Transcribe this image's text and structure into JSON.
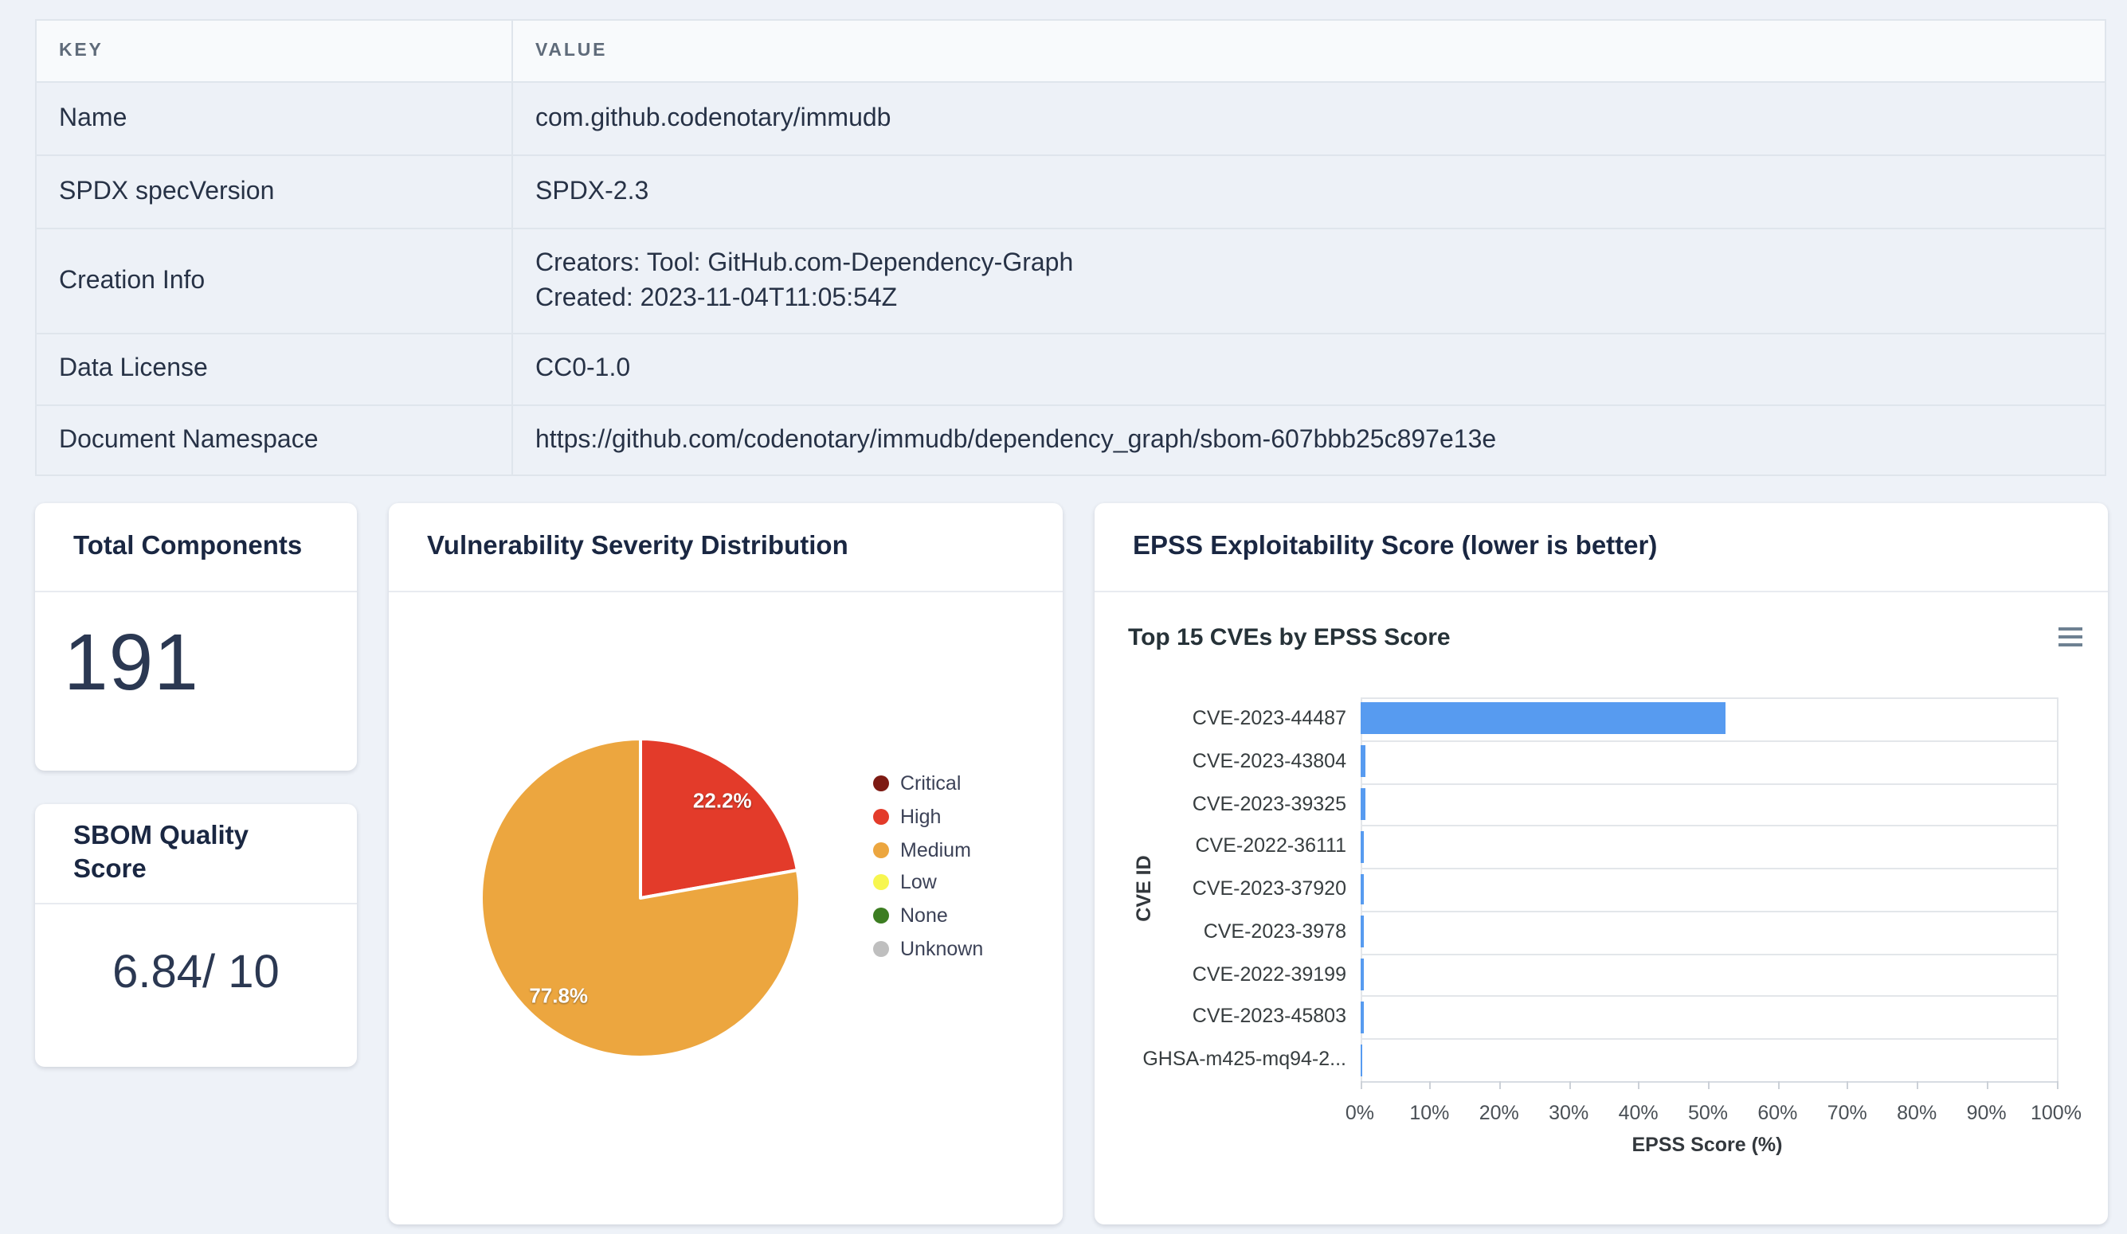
{
  "metadata_table": {
    "headers": [
      "KEY",
      "VALUE"
    ],
    "rows": [
      {
        "key": "Name",
        "value": "com.github.codenotary/immudb"
      },
      {
        "key": "SPDX specVersion",
        "value": "SPDX-2.3"
      },
      {
        "key": "Creation Info",
        "value_lines": [
          "Creators: Tool: GitHub.com-Dependency-Graph",
          "Created: 2023-11-04T11:05:54Z"
        ]
      },
      {
        "key": "Data License",
        "value": "CC0-1.0"
      },
      {
        "key": "Document Namespace",
        "value": "https://github.com/codenotary/immudb/dependency_graph/sbom-607bbb25c897e13e"
      }
    ]
  },
  "cards": {
    "total_components": {
      "title": "Total Components",
      "value": "191"
    },
    "sbom_quality": {
      "title": "SBOM Quality Score",
      "value": "6.84/ 10"
    },
    "severity_distribution": {
      "title": "Vulnerability Severity Distribution"
    },
    "epss": {
      "title": "EPSS Exploitability Score (lower is better)"
    }
  },
  "chart_data": [
    {
      "type": "pie",
      "title": "Vulnerability Severity Distribution",
      "slices": [
        {
          "label": "High",
          "value": 22.2,
          "color": "#e33b2a",
          "data_label": "22.2%"
        },
        {
          "label": "Medium",
          "value": 77.8,
          "color": "#eca63f",
          "data_label": "77.8%"
        }
      ],
      "legend_position": "right",
      "legend": [
        {
          "label": "Critical",
          "color": "#7d1a13"
        },
        {
          "label": "High",
          "color": "#e33b2a"
        },
        {
          "label": "Medium",
          "color": "#eca63f"
        },
        {
          "label": "Low",
          "color": "#f7f64f"
        },
        {
          "label": "None",
          "color": "#3c7d21"
        },
        {
          "label": "Unknown",
          "color": "#bfbfbf"
        }
      ]
    },
    {
      "type": "bar",
      "orientation": "horizontal",
      "title": "Top 15 CVEs by EPSS Score",
      "categories": [
        "CVE-2023-44487",
        "CVE-2023-43804",
        "CVE-2023-39325",
        "CVE-2022-36111",
        "CVE-2023-37920",
        "CVE-2023-3978",
        "CVE-2022-39199",
        "CVE-2023-45803",
        "GHSA-m425-mq94-2..."
      ],
      "values": [
        52.4,
        0.7,
        0.6,
        0.55,
        0.5,
        0.5,
        0.45,
        0.4,
        0.1
      ],
      "xlabel": "EPSS Score (%)",
      "ylabel": "CVE ID",
      "xlim": [
        0,
        100
      ],
      "x_ticks": [
        "0%",
        "10%",
        "20%",
        "30%",
        "40%",
        "50%",
        "60%",
        "70%",
        "80%",
        "90%",
        "100%"
      ],
      "bar_color": "#579bf0",
      "grid": "horizontal-rows"
    }
  ]
}
